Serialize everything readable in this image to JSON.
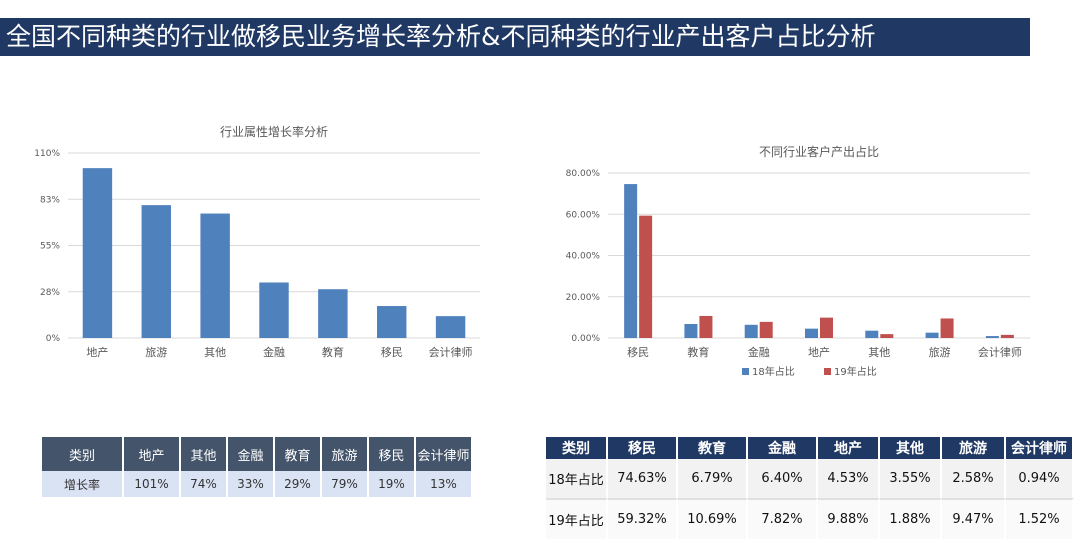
{
  "page": {
    "title": "全国不同种类的行业做移民业务增长率分析&不同种类的行业产出客户占比分析"
  },
  "chart_data": [
    {
      "type": "bar",
      "title": "行业属性增长率分析",
      "categories": [
        "地产",
        "旅游",
        "其他",
        "金融",
        "教育",
        "移民",
        "会计律师"
      ],
      "values": [
        101,
        79,
        74,
        33,
        29,
        19,
        13
      ],
      "yticks": [
        "0%",
        "28%",
        "55%",
        "83%",
        "110%"
      ],
      "ylim": [
        0,
        110
      ],
      "color": "#4f81bd",
      "grid": true
    },
    {
      "type": "bar",
      "title": "不同行业客户产出占比",
      "categories": [
        "移民",
        "教育",
        "金融",
        "地产",
        "其他",
        "旅游",
        "会计律师"
      ],
      "series": [
        {
          "name": "18年占比",
          "values": [
            74.63,
            6.79,
            6.4,
            4.53,
            3.55,
            2.58,
            0.94
          ],
          "color": "#4f81bd"
        },
        {
          "name": "19年占比",
          "values": [
            59.32,
            10.69,
            7.82,
            9.88,
            1.88,
            9.47,
            1.52
          ],
          "color": "#c0504d"
        }
      ],
      "yticks": [
        "0.00%",
        "20.00%",
        "40.00%",
        "60.00%",
        "80.00%"
      ],
      "ylim": [
        0,
        80
      ],
      "legend": "bottom",
      "grid": true
    }
  ],
  "table1": {
    "headers": [
      "类别",
      "地产",
      "其他",
      "金融",
      "教育",
      "旅游",
      "移民",
      "会计律师"
    ],
    "rows": [
      [
        "增长率",
        "101%",
        "74%",
        "33%",
        "29%",
        "79%",
        "19%",
        "13%"
      ]
    ]
  },
  "table2": {
    "headers": [
      "类别",
      "移民",
      "教育",
      "金融",
      "地产",
      "其他",
      "旅游",
      "会计律师"
    ],
    "rows": [
      [
        "18年占比",
        "74.63%",
        "6.79%",
        "6.40%",
        "4.53%",
        "3.55%",
        "2.58%",
        "0.94%"
      ],
      [
        "19年占比",
        "59.32%",
        "10.69%",
        "7.82%",
        "9.88%",
        "1.88%",
        "9.47%",
        "1.52%"
      ]
    ]
  }
}
